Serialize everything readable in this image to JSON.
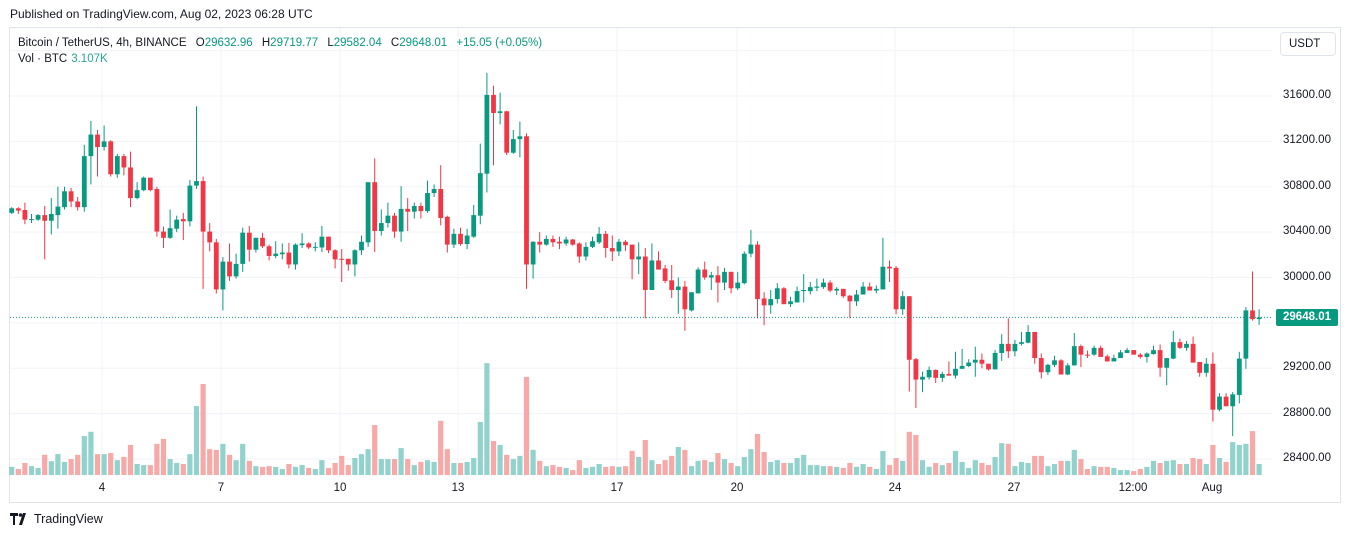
{
  "header": {
    "published": "Published on TradingView.com, Aug 02, 2023 06:28 UTC"
  },
  "legend": {
    "symbol": "Bitcoin / TetherUS, 4h, BINANCE",
    "open_label": "O",
    "open": "29632.96",
    "high_label": "H",
    "high": "29719.77",
    "low_label": "L",
    "low": "29582.04",
    "close_label": "C",
    "close": "29648.01",
    "change": "+15.05 (+0.05%)",
    "volume_label": "Vol · BTC",
    "volume": "3.107K"
  },
  "currency_button": "USDT",
  "last_price_label": "29648.01",
  "footer": {
    "brand": "TradingView",
    "icon": "tradingview-logo-icon"
  },
  "colors": {
    "up": "#089981",
    "down": "#F23645",
    "vol_up": "#92D2CC",
    "vol_down": "#F7A9A7",
    "grid": "#F0F3FA"
  },
  "chart_data": {
    "type": "candlestick",
    "symbol": "BTCUSDT",
    "exchange": "BINANCE",
    "timeframe": "4h",
    "ylim": [
      28200,
      32100
    ],
    "y_ticks": [
      "31600.00",
      "31200.00",
      "30800.00",
      "30400.00",
      "30000.00",
      "29200.00",
      "28800.00",
      "28400.00"
    ],
    "x_ticks": [
      "4",
      "7",
      "10",
      "13",
      "17",
      "20",
      "24",
      "27",
      "12:00",
      "Aug"
    ],
    "grid": true,
    "candle_fields": [
      "open",
      "high",
      "low",
      "close",
      "volume_k"
    ],
    "candles": [
      [
        30570,
        30620,
        30560,
        30610,
        2.3
      ],
      [
        30610,
        30620,
        30560,
        30590,
        1.7
      ],
      [
        30595,
        30660,
        30470,
        30510,
        3.4
      ],
      [
        30515,
        30560,
        30480,
        30515,
        2.5
      ],
      [
        30510,
        30560,
        30500,
        30550,
        2.0
      ],
      [
        30550,
        30630,
        30160,
        30500,
        5.7
      ],
      [
        30500,
        30700,
        30380,
        30560,
        3.9
      ],
      [
        30550,
        30800,
        30430,
        30625,
        5.9
      ],
      [
        30620,
        30800,
        30600,
        30760,
        3.7
      ],
      [
        30760,
        30790,
        30620,
        30670,
        4.5
      ],
      [
        30670,
        30710,
        30590,
        30620,
        5.7
      ],
      [
        30620,
        31170,
        30580,
        31070,
        11.0
      ],
      [
        31070,
        31380,
        30820,
        31260,
        12.2
      ],
      [
        31260,
        31300,
        30890,
        31150,
        5.9
      ],
      [
        31150,
        31340,
        31120,
        31200,
        5.9
      ],
      [
        31200,
        31210,
        30890,
        30910,
        6.2
      ],
      [
        30910,
        31090,
        30880,
        31070,
        4.2
      ],
      [
        31070,
        31090,
        30900,
        30970,
        5.1
      ],
      [
        30970,
        31110,
        30620,
        30700,
        8.5
      ],
      [
        30700,
        30840,
        30690,
        30770,
        3.1
      ],
      [
        30770,
        30890,
        30760,
        30880,
        2.8
      ],
      [
        30880,
        30880,
        30760,
        30770,
        2.8
      ],
      [
        30780,
        30800,
        30360,
        30405,
        8.8
      ],
      [
        30405,
        30450,
        30260,
        30350,
        10.2
      ],
      [
        30350,
        30600,
        30340,
        30435,
        4.5
      ],
      [
        30430,
        30545,
        30400,
        30510,
        3.4
      ],
      [
        30515,
        30570,
        30330,
        30495,
        3.1
      ],
      [
        30495,
        30860,
        30450,
        30810,
        5.9
      ],
      [
        30810,
        31510,
        30780,
        30850,
        19.5
      ],
      [
        30850,
        30890,
        29900,
        30405,
        25.7
      ],
      [
        30405,
        30480,
        30230,
        30310,
        7.3
      ],
      [
        30310,
        30340,
        29860,
        29895,
        7.1
      ],
      [
        29895,
        30180,
        29710,
        30140,
        8.8
      ],
      [
        30140,
        30300,
        29970,
        30010,
        5.7
      ],
      [
        30010,
        30210,
        29990,
        30120,
        4.2
      ],
      [
        30120,
        30440,
        30050,
        30395,
        8.8
      ],
      [
        30395,
        30455,
        30140,
        30245,
        4.0
      ],
      [
        30245,
        30350,
        30220,
        30350,
        2.5
      ],
      [
        30350,
        30395,
        30260,
        30275,
        2.3
      ],
      [
        30275,
        30290,
        30150,
        30190,
        2.5
      ],
      [
        30190,
        30320,
        30170,
        30210,
        2.3
      ],
      [
        30205,
        30300,
        30160,
        30220,
        1.7
      ],
      [
        30220,
        30305,
        30080,
        30115,
        3.1
      ],
      [
        30115,
        30300,
        30070,
        30290,
        2.3
      ],
      [
        30285,
        30390,
        30260,
        30300,
        2.8
      ],
      [
        30300,
        30310,
        30250,
        30265,
        2.0
      ],
      [
        30268,
        30310,
        30230,
        30270,
        1.7
      ],
      [
        30265,
        30455,
        30225,
        30360,
        4.2
      ],
      [
        30360,
        30360,
        30215,
        30240,
        2.0
      ],
      [
        30240,
        30250,
        30080,
        30160,
        3.4
      ],
      [
        30165,
        30250,
        29960,
        30163,
        5.4
      ],
      [
        30165,
        30165,
        30060,
        30115,
        2.8
      ],
      [
        30115,
        30250,
        30010,
        30240,
        4.8
      ],
      [
        30240,
        30370,
        30200,
        30315,
        5.9
      ],
      [
        30310,
        30840,
        30270,
        30840,
        7.3
      ],
      [
        30840,
        31050,
        30225,
        30410,
        14.1
      ],
      [
        30410,
        30600,
        30370,
        30480,
        4.5
      ],
      [
        30480,
        30660,
        30440,
        30545,
        4.5
      ],
      [
        30545,
        30570,
        30350,
        30405,
        4.5
      ],
      [
        30405,
        30805,
        30315,
        30605,
        7.6
      ],
      [
        30605,
        30700,
        30410,
        30580,
        4.5
      ],
      [
        30580,
        30660,
        30520,
        30630,
        2.8
      ],
      [
        30630,
        30660,
        30520,
        30585,
        3.7
      ],
      [
        30585,
        30855,
        30570,
        30745,
        4.2
      ],
      [
        30745,
        30820,
        30710,
        30780,
        3.7
      ],
      [
        30780,
        30990,
        30460,
        30525,
        15.3
      ],
      [
        30535,
        30545,
        30220,
        30290,
        7.3
      ],
      [
        30290,
        30430,
        30260,
        30385,
        3.4
      ],
      [
        30385,
        30440,
        30280,
        30295,
        3.4
      ],
      [
        30295,
        30430,
        30250,
        30370,
        3.7
      ],
      [
        30360,
        30640,
        30350,
        30550,
        4.8
      ],
      [
        30545,
        31180,
        30470,
        30920,
        15.0
      ],
      [
        30915,
        31804,
        30750,
        31610,
        31.6
      ],
      [
        31610,
        31690,
        30990,
        31450,
        9.6
      ],
      [
        31450,
        31630,
        31350,
        31465,
        8.5
      ],
      [
        31465,
        31470,
        31080,
        31100,
        5.7
      ],
      [
        31100,
        31300,
        31090,
        31220,
        4.5
      ],
      [
        31220,
        31375,
        31060,
        31245,
        5.4
      ],
      [
        31245,
        31270,
        29900,
        30115,
        27.7
      ],
      [
        30115,
        30320,
        29990,
        30315,
        7.1
      ],
      [
        30315,
        30400,
        30220,
        30290,
        4.0
      ],
      [
        30290,
        30370,
        30280,
        30340,
        2.5
      ],
      [
        30340,
        30370,
        30270,
        30310,
        2.8
      ],
      [
        30315,
        30360,
        30250,
        30300,
        2.3
      ],
      [
        30300,
        30360,
        30280,
        30335,
        2.0
      ],
      [
        30335,
        30340,
        30280,
        30290,
        1.4
      ],
      [
        30300,
        30310,
        30130,
        30185,
        4.2
      ],
      [
        30185,
        30310,
        30150,
        30270,
        2.0
      ],
      [
        30270,
        30360,
        30260,
        30320,
        2.3
      ],
      [
        30310,
        30445,
        30295,
        30385,
        3.1
      ],
      [
        30385,
        30410,
        30175,
        30260,
        2.3
      ],
      [
        30260,
        30370,
        30145,
        30230,
        2.5
      ],
      [
        30230,
        30340,
        30190,
        30315,
        2.3
      ],
      [
        30315,
        30330,
        30235,
        30285,
        2.5
      ],
      [
        30290,
        30290,
        29985,
        30160,
        6.8
      ],
      [
        30160,
        30310,
        30030,
        30185,
        5.1
      ],
      [
        30185,
        30260,
        29640,
        29890,
        9.9
      ],
      [
        29890,
        30300,
        29890,
        30150,
        4.2
      ],
      [
        30150,
        30230,
        30070,
        30070,
        3.1
      ],
      [
        30080,
        30110,
        29950,
        29970,
        4.2
      ],
      [
        29975,
        30110,
        29820,
        29890,
        5.4
      ],
      [
        29890,
        30000,
        29680,
        29920,
        7.9
      ],
      [
        29920,
        29970,
        29530,
        29720,
        7.1
      ],
      [
        29710,
        29870,
        29700,
        29870,
        2.5
      ],
      [
        29860,
        30090,
        29860,
        30070,
        4.0
      ],
      [
        30070,
        30140,
        29980,
        30000,
        4.2
      ],
      [
        30000,
        30050,
        29890,
        30020,
        3.7
      ],
      [
        30020,
        30100,
        29780,
        29955,
        6.2
      ],
      [
        29955,
        30085,
        29890,
        30050,
        4.5
      ],
      [
        30050,
        30050,
        29860,
        29905,
        3.4
      ],
      [
        29905,
        30050,
        29890,
        29955,
        2.5
      ],
      [
        29950,
        30230,
        29940,
        30210,
        5.1
      ],
      [
        30210,
        30420,
        30180,
        30290,
        7.3
      ],
      [
        30290,
        30320,
        29640,
        29810,
        11.6
      ],
      [
        29815,
        29870,
        29580,
        29755,
        6.5
      ],
      [
        29755,
        29890,
        29680,
        29810,
        3.7
      ],
      [
        29810,
        29950,
        29770,
        29905,
        4.2
      ],
      [
        29905,
        29915,
        29765,
        29765,
        3.4
      ],
      [
        29765,
        29830,
        29740,
        29790,
        3.4
      ],
      [
        29780,
        29920,
        29780,
        29880,
        4.8
      ],
      [
        29880,
        30030,
        29780,
        29890,
        5.7
      ],
      [
        29880,
        29960,
        29850,
        29915,
        2.8
      ],
      [
        29910,
        29990,
        29880,
        29920,
        2.8
      ],
      [
        29915,
        29990,
        29900,
        29955,
        2.5
      ],
      [
        29955,
        29975,
        29870,
        29885,
        2.5
      ],
      [
        29885,
        29915,
        29845,
        29900,
        2.3
      ],
      [
        29900,
        29900,
        29820,
        29835,
        2.0
      ],
      [
        29840,
        29845,
        29640,
        29790,
        3.4
      ],
      [
        29790,
        29890,
        29750,
        29850,
        2.3
      ],
      [
        29850,
        29960,
        29850,
        29920,
        3.1
      ],
      [
        29920,
        29955,
        29885,
        29885,
        2.3
      ],
      [
        29885,
        29930,
        29860,
        29900,
        1.7
      ],
      [
        29895,
        30350,
        29895,
        30095,
        6.8
      ],
      [
        30095,
        30150,
        29960,
        30080,
        2.8
      ],
      [
        30085,
        30100,
        29675,
        29720,
        4.8
      ],
      [
        29720,
        29880,
        29670,
        29835,
        4.0
      ],
      [
        29835,
        29835,
        28995,
        29275,
        12.2
      ],
      [
        29280,
        29290,
        28850,
        29100,
        11.3
      ],
      [
        29100,
        29170,
        28990,
        29125,
        4.2
      ],
      [
        29120,
        29215,
        29100,
        29185,
        2.3
      ],
      [
        29185,
        29190,
        29070,
        29115,
        3.4
      ],
      [
        29115,
        29170,
        29080,
        29150,
        2.8
      ],
      [
        29150,
        29260,
        29135,
        29135,
        3.4
      ],
      [
        29135,
        29345,
        29110,
        29195,
        6.8
      ],
      [
        29195,
        29370,
        29195,
        29220,
        3.7
      ],
      [
        29220,
        29280,
        29210,
        29250,
        2.0
      ],
      [
        29250,
        29390,
        29125,
        29275,
        4.2
      ],
      [
        29275,
        29330,
        29200,
        29240,
        3.4
      ],
      [
        29240,
        29240,
        29180,
        29190,
        2.8
      ],
      [
        29190,
        29360,
        29190,
        29335,
        5.1
      ],
      [
        29335,
        29500,
        29265,
        29415,
        9.0
      ],
      [
        29415,
        29640,
        29290,
        29350,
        8.8
      ],
      [
        29350,
        29450,
        29305,
        29415,
        2.5
      ],
      [
        29415,
        29520,
        29400,
        29430,
        3.7
      ],
      [
        29425,
        29580,
        29420,
        29520,
        3.4
      ],
      [
        29520,
        29520,
        29240,
        29290,
        5.4
      ],
      [
        29290,
        29330,
        29110,
        29165,
        5.4
      ],
      [
        29165,
        29240,
        29140,
        29230,
        2.5
      ],
      [
        29230,
        29310,
        29210,
        29270,
        3.1
      ],
      [
        29270,
        29280,
        29145,
        29145,
        4.0
      ],
      [
        29145,
        29245,
        29140,
        29225,
        4.0
      ],
      [
        29225,
        29510,
        29225,
        29395,
        7.1
      ],
      [
        29395,
        29410,
        29210,
        29320,
        4.5
      ],
      [
        29320,
        29355,
        29290,
        29318,
        1.7
      ],
      [
        29320,
        29400,
        29310,
        29380,
        2.5
      ],
      [
        29380,
        29400,
        29300,
        29300,
        2.3
      ],
      [
        29305,
        29320,
        29260,
        29260,
        2.3
      ],
      [
        29260,
        29320,
        29260,
        29290,
        2.0
      ],
      [
        29290,
        29360,
        29290,
        29340,
        1.4
      ],
      [
        29335,
        29380,
        29335,
        29360,
        1.4
      ],
      [
        29360,
        29360,
        29320,
        29320,
        1.1
      ],
      [
        29320,
        29335,
        29285,
        29300,
        1.7
      ],
      [
        29300,
        29340,
        29250,
        29330,
        2.3
      ],
      [
        29325,
        29400,
        29320,
        29360,
        4.0
      ],
      [
        29360,
        29410,
        29125,
        29205,
        3.4
      ],
      [
        29205,
        29290,
        29050,
        29290,
        4.0
      ],
      [
        29285,
        29530,
        29280,
        29430,
        4.2
      ],
      [
        29430,
        29460,
        29370,
        29380,
        3.1
      ],
      [
        29380,
        29440,
        29355,
        29415,
        3.1
      ],
      [
        29415,
        29480,
        29250,
        29250,
        4.8
      ],
      [
        29255,
        29255,
        29125,
        29160,
        4.5
      ],
      [
        29160,
        29290,
        29125,
        29240,
        3.1
      ],
      [
        29240,
        29340,
        28730,
        28835,
        8.5
      ],
      [
        28835,
        28980,
        28820,
        28950,
        4.8
      ],
      [
        28950,
        28980,
        28865,
        28865,
        3.7
      ],
      [
        28865,
        28990,
        28601,
        28970,
        9.3
      ],
      [
        28965,
        29345,
        28890,
        29285,
        8.5
      ],
      [
        29285,
        29740,
        29195,
        29710,
        8.8
      ],
      [
        29710,
        30053,
        29620,
        29632.96,
        12.4
      ],
      [
        29632.96,
        29719.77,
        29582.04,
        29648.01,
        3.107
      ]
    ],
    "last_price": 29648.01
  }
}
